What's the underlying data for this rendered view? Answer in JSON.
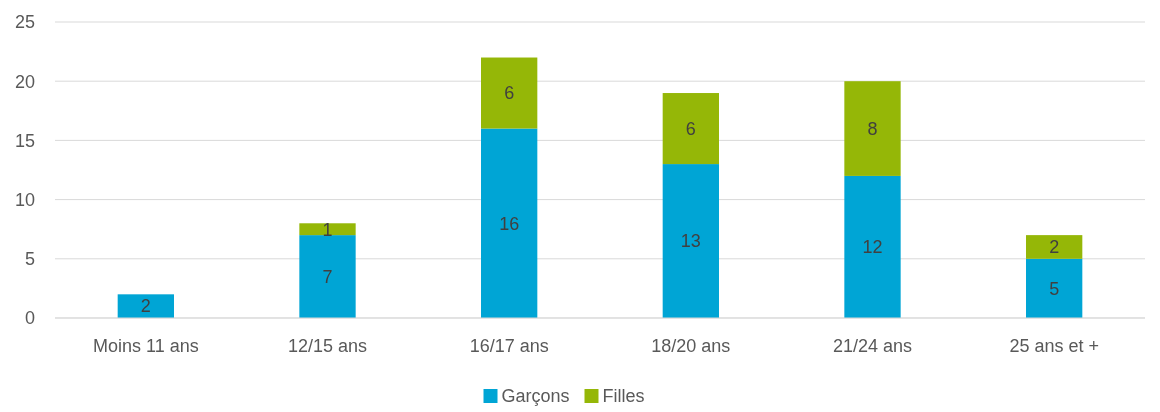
{
  "chart_data": {
    "type": "bar",
    "stacked": true,
    "categories": [
      "Moins 11 ans",
      "12/15 ans",
      "16/17 ans",
      "18/20 ans",
      "21/24 ans",
      "25 ans et +"
    ],
    "series": [
      {
        "name": "Garçons",
        "color": "#00a5d5",
        "values": [
          2,
          7,
          16,
          13,
          12,
          5
        ]
      },
      {
        "name": "Filles",
        "color": "#95b707",
        "values": [
          null,
          1,
          6,
          6,
          8,
          2
        ]
      }
    ],
    "ylim": [
      0,
      25
    ],
    "yticks": [
      0,
      5,
      10,
      15,
      20,
      25
    ],
    "grid": "y",
    "legend": "bottom",
    "data_labels": true
  }
}
